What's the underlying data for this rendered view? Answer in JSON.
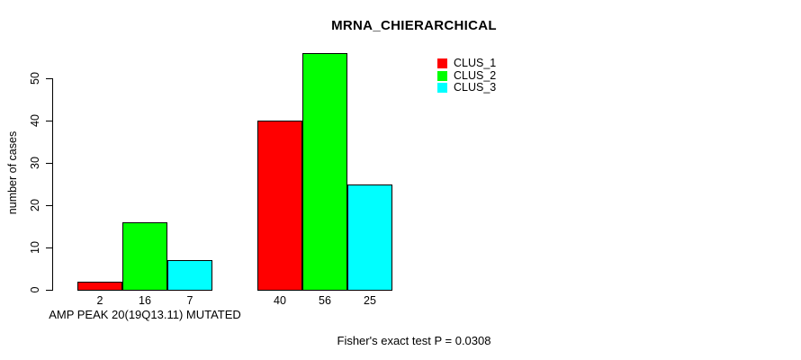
{
  "chart_data": {
    "type": "bar",
    "title": "MRNA_CHIERARCHICAL",
    "ylabel": "number of cases",
    "xlabel": "AMP PEAK 20(19Q13.11) MUTATED",
    "annotation": "Fisher's exact test P = 0.0308",
    "categories": [
      "AMP PEAK 20(19Q13.11) MUTATED",
      ""
    ],
    "series": [
      {
        "name": "CLUS_1",
        "color": "#ff0000",
        "values": [
          2,
          40
        ]
      },
      {
        "name": "CLUS_2",
        "color": "#00ff00",
        "values": [
          16,
          56
        ]
      },
      {
        "name": "CLUS_3",
        "color": "#00ffff",
        "values": [
          7,
          25
        ]
      }
    ],
    "bar_labels": [
      [
        2,
        16,
        7
      ],
      [
        40,
        56,
        25
      ]
    ],
    "yticks": [
      0,
      10,
      20,
      30,
      40,
      50
    ],
    "ylim": [
      0,
      56
    ],
    "grid": false,
    "legend_position": "top-right",
    "axis_color": "#000000",
    "background_color": "#ffffff"
  }
}
